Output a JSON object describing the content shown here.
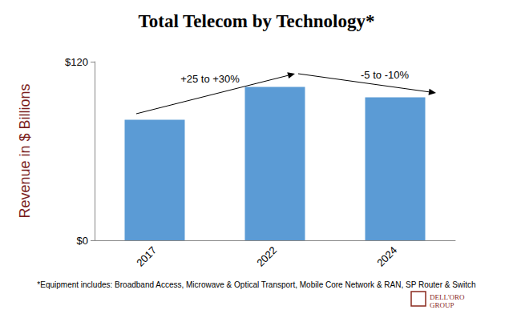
{
  "chart_data": {
    "type": "bar",
    "title": "Total Telecom by Technology*",
    "y_label": "Revenue in $ Billions",
    "categories": [
      "2017",
      "2022",
      "2024"
    ],
    "values": [
      81,
      103,
      96
    ],
    "color": "#5b9bd5",
    "ylim": [
      0,
      120
    ],
    "yticks": [
      {
        "value": 0,
        "label": "$0"
      },
      {
        "value": 120,
        "label": "$120"
      }
    ],
    "grid": false,
    "annotations": [
      {
        "text": "+25 to +30%"
      },
      {
        "text": "-5 to -10%"
      }
    ],
    "footnote": "*Equipment includes: Broadband Access, Microwave & Optical Transport, Mobile Core Network & RAN, SP Router & Switch",
    "logo": [
      "DELL'ORO",
      "GROUP"
    ]
  }
}
